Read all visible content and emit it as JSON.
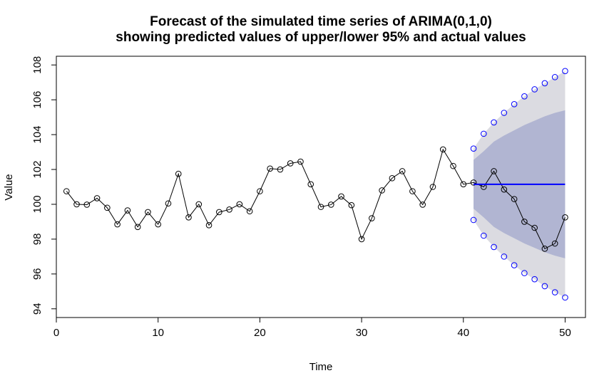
{
  "chart_data": {
    "type": "line",
    "title": "Forecast of the simulated time series of ARIMA(0,1,0)",
    "subtitle": "showing predicted values of upper/lower 95% and actual values",
    "xlabel": "Time",
    "ylabel": "Value",
    "xlim": [
      0,
      52
    ],
    "ylim": [
      93.5,
      108.5
    ],
    "x_ticks": [
      0,
      10,
      20,
      30,
      40,
      50
    ],
    "y_ticks": [
      94,
      96,
      98,
      100,
      102,
      104,
      106,
      108
    ],
    "grid": false,
    "colors": {
      "observed": "#000000",
      "forecast": "#0000FF",
      "band_95": "#DBDBE1",
      "band_80": "#B1B5D2",
      "bound_points": "#0000FF"
    },
    "observed": {
      "x": [
        1,
        2,
        3,
        4,
        5,
        6,
        7,
        8,
        9,
        10,
        11,
        12,
        13,
        14,
        15,
        16,
        17,
        18,
        19,
        20,
        21,
        22,
        23,
        24,
        25,
        26,
        27,
        28,
        29,
        30,
        31,
        32,
        33,
        34,
        35,
        36,
        37,
        38,
        39,
        40,
        41,
        42,
        43,
        44,
        45,
        46,
        47,
        48,
        49,
        50
      ],
      "y": [
        100.75,
        100.0,
        99.98,
        100.35,
        99.8,
        98.85,
        99.65,
        98.7,
        99.55,
        98.85,
        100.05,
        101.75,
        99.25,
        100.0,
        98.8,
        99.55,
        99.7,
        100.0,
        99.6,
        100.75,
        102.05,
        102.0,
        102.35,
        102.45,
        101.15,
        99.85,
        99.98,
        100.45,
        99.95,
        98.0,
        99.2,
        100.8,
        101.5,
        101.9,
        100.75,
        99.98,
        101.0,
        103.15,
        102.2,
        101.15,
        101.25,
        101.0,
        101.9,
        100.85,
        100.3,
        99.0,
        98.65,
        97.45,
        97.75,
        99.25
      ]
    },
    "forecast": {
      "x": [
        41,
        42,
        43,
        44,
        45,
        46,
        47,
        48,
        49,
        50
      ],
      "mean": [
        101.15,
        101.15,
        101.15,
        101.15,
        101.15,
        101.15,
        101.15,
        101.15,
        101.15,
        101.15
      ],
      "lower_80": [
        99.75,
        99.25,
        98.7,
        98.35,
        98.05,
        97.75,
        97.5,
        97.25,
        97.05,
        96.9
      ],
      "upper_80": [
        102.55,
        103.05,
        103.6,
        103.95,
        104.25,
        104.55,
        104.8,
        105.05,
        105.25,
        105.4
      ],
      "lower_95": [
        99.1,
        98.2,
        97.55,
        97.0,
        96.5,
        96.05,
        95.7,
        95.3,
        94.95,
        94.65
      ],
      "upper_95": [
        103.2,
        104.05,
        104.7,
        105.25,
        105.75,
        106.2,
        106.6,
        106.95,
        107.3,
        107.65
      ]
    }
  }
}
